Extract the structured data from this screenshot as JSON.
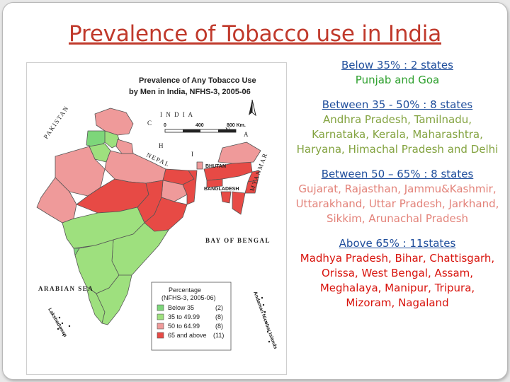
{
  "title": "Prevalence of Tobacco use in India",
  "colors": {
    "title": "#c0392b",
    "heading": "#1f4e9c",
    "below35": "#2ea02e",
    "between35_50": "#83a340",
    "between50_65": "#e3837a",
    "above65": "#d8130c",
    "map_below35": "#7dd67a",
    "map_35_50": "#9ee07e",
    "map_50_65": "#ef9a9a",
    "map_65plus": "#e74a45"
  },
  "map": {
    "title_line1": "Prevalence of Any Tobacco Use",
    "title_line2": "by Men in India, NFHS-3, 2005-06",
    "country_label": "I N D I A",
    "scale_0": "0",
    "scale_400": "400",
    "scale_800": "800 Km.",
    "labels": {
      "pakistan": "PAKISTAN",
      "china_c": "C",
      "china_h": "H",
      "china_i": "I",
      "china_n": "N",
      "china_a": "A",
      "nepal": "NEPAL",
      "bhutan": "BHUTAN",
      "bangladesh": "BANGLADESH",
      "myanmar": "MYANMAR",
      "bay_of_bengal": "BAY OF BENGAL",
      "arabian_sea": "ARABIAN SEA",
      "lakshadweep": "Lakshadweep",
      "andaman": "Andaman Nicobar Islands"
    },
    "legend": {
      "title": "Percentage",
      "subtitle": "(NFHS-3, 2005-06)",
      "rows": [
        {
          "label": "Below 35",
          "count": "(2)"
        },
        {
          "label": "35 to 49.99",
          "count": "(8)"
        },
        {
          "label": "50 to 64.99",
          "count": "(8)"
        },
        {
          "label": "65 and above",
          "count": "(11)"
        }
      ]
    }
  },
  "groups": [
    {
      "heading": "Below 35% : 2 states",
      "names": "Punjab and Goa"
    },
    {
      "heading": "Between 35 - 50% : 8 states",
      "names": "Andhra Pradesh, Tamilnadu, Karnataka, Kerala, Maharashtra, Haryana, Himachal Pradesh and Delhi"
    },
    {
      "heading": "Between 50 – 65% : 8 states",
      "names": "Gujarat, Rajasthan, Jammu&Kashmir, Uttarakhand, Uttar Pradesh, Jarkhand, Sikkim, Arunachal Pradesh"
    },
    {
      "heading": "Above 65% : 11states",
      "names": "Madhya Pradesh, Bihar, Chattisgarh, Orissa, West Bengal, Assam, Meghalaya, Manipur, Tripura, Mizoram, Nagaland"
    }
  ]
}
